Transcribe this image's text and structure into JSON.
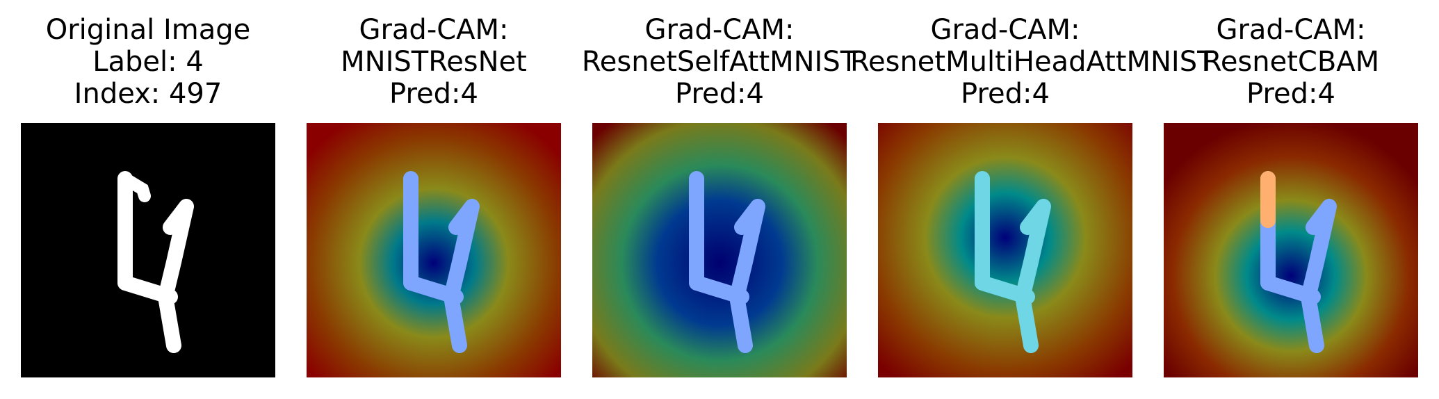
{
  "figure": {
    "panels": [
      {
        "id": "original",
        "title_lines": [
          "Original Image",
          "Label: 4",
          "Index: 497"
        ],
        "image_kind": "grayscale-digit",
        "digit_label": 4,
        "sample_index": 497
      },
      {
        "id": "gradcam-mnistresnet",
        "title_lines": [
          "Grad-CAM:",
          "MNISTResNet",
          "Pred:4"
        ],
        "image_kind": "gradcam-overlay",
        "model": "MNISTResNet",
        "prediction": 4
      },
      {
        "id": "gradcam-resnetselfattmnist",
        "title_lines": [
          "Grad-CAM:",
          "ResnetSelfAttMNIST",
          "Pred:4"
        ],
        "image_kind": "gradcam-overlay",
        "model": "ResnetSelfAttMNIST",
        "prediction": 4
      },
      {
        "id": "gradcam-resnetmultiheadattmnist",
        "title_lines": [
          "Grad-CAM:",
          "ResnetMultiHeadAttMNIST",
          "Pred:4"
        ],
        "image_kind": "gradcam-overlay",
        "model": "ResnetMultiHeadAttMNIST",
        "prediction": 4
      },
      {
        "id": "gradcam-resnetcbam",
        "title_lines": [
          "Grad-CAM:",
          "ResnetCBAM",
          "Pred:4"
        ],
        "image_kind": "gradcam-overlay",
        "model": "ResnetCBAM",
        "prediction": 4
      }
    ],
    "colors": {
      "heat_high": "#8b0000",
      "heat_mid": "#8a8a00",
      "heat_low": "#00008b",
      "overlay_stroke": "#7fa6ff",
      "digit": "#ffffff",
      "background_digit_panel": "#000000"
    }
  }
}
